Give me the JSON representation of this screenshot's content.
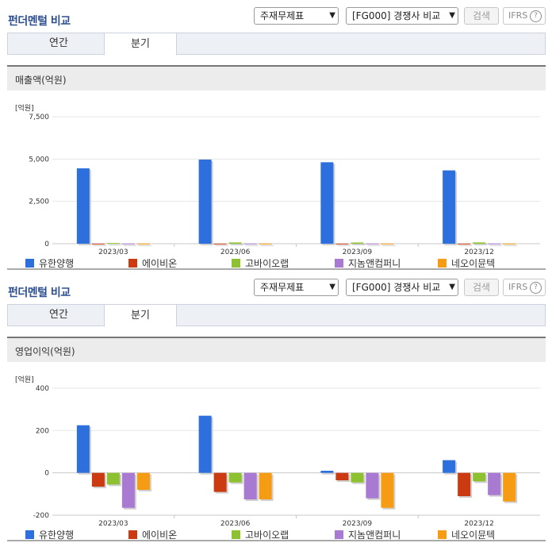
{
  "panels": [
    {
      "title": "펀더멘털 비교",
      "select1": "주재무제표",
      "select2": "[FG000] 경쟁사 비교",
      "search_label": "검색",
      "ifrs_label": "IFRS",
      "ifrs_help": "?",
      "tabs": [
        {
          "label": "연간"
        },
        {
          "label": "분기"
        }
      ],
      "active_tab": "분기",
      "chart_title": "매출액(억원)",
      "unit": "[억원]",
      "legend": [
        "유한양행",
        "에이비온",
        "고바이오랩",
        "지놈앤컴퍼니",
        "네오이뮨텍"
      ]
    },
    {
      "title": "펀더멘털 비교",
      "select1": "주재무제표",
      "select2": "[FG000] 경쟁사 비교",
      "search_label": "검색",
      "ifrs_label": "IFRS",
      "ifrs_help": "?",
      "tabs": [
        {
          "label": "연간"
        },
        {
          "label": "분기"
        }
      ],
      "active_tab": "분기",
      "chart_title": "영업이익(억원)",
      "unit": "[억원]",
      "legend": [
        "유한양행",
        "에이비온",
        "고바이오랩",
        "지놈앤컴퍼니",
        "네오이뮨텍"
      ]
    }
  ],
  "colors": {
    "유한양행": "#2d6fdc",
    "에이비온": "#cc3a12",
    "고바이오랩": "#8ec12f",
    "지놈앤컴퍼니": "#a97ad2",
    "네오이뮨텍": "#f59c14",
    "title_blue": "#2e4f8f"
  },
  "chart_data": [
    {
      "type": "bar",
      "title": "매출액(억원)",
      "unit": "[억원]",
      "categories": [
        "2023/03",
        "2023/06",
        "2023/09",
        "2023/12"
      ],
      "yticks": [
        0,
        2500,
        5000,
        7500
      ],
      "ytick_labels": [
        "0",
        "2,500",
        "5,000",
        "7,500"
      ],
      "ylim": [
        0,
        7500
      ],
      "grid": true,
      "legend_position": "bottom",
      "series": [
        {
          "name": "유한양행",
          "values": [
            4450,
            4970,
            4810,
            4330
          ]
        },
        {
          "name": "에이비온",
          "values": [
            1,
            1,
            1,
            1
          ]
        },
        {
          "name": "고바이오랩",
          "values": [
            40,
            75,
            70,
            75
          ]
        },
        {
          "name": "지놈앤컴퍼니",
          "values": [
            5,
            10,
            10,
            10
          ]
        },
        {
          "name": "네오이뮨텍",
          "values": [
            1,
            1,
            1,
            1
          ]
        }
      ]
    },
    {
      "type": "bar",
      "title": "영업이익(억원)",
      "unit": "[억원]",
      "categories": [
        "2023/03",
        "2023/06",
        "2023/09",
        "2023/12"
      ],
      "yticks": [
        -200,
        0,
        200,
        400
      ],
      "ytick_labels": [
        "-200",
        "0",
        "200",
        "400"
      ],
      "ylim": [
        -200,
        400
      ],
      "grid": true,
      "legend_position": "bottom",
      "series": [
        {
          "name": "유한양행",
          "values": [
            225,
            270,
            10,
            60
          ]
        },
        {
          "name": "에이비온",
          "values": [
            -65,
            -90,
            -35,
            -110
          ]
        },
        {
          "name": "고바이오랩",
          "values": [
            -55,
            -45,
            -45,
            -40
          ]
        },
        {
          "name": "지놈앤컴퍼니",
          "values": [
            -165,
            -125,
            -120,
            -105
          ]
        },
        {
          "name": "네오이뮨텍",
          "values": [
            -80,
            -125,
            -165,
            -135
          ]
        }
      ]
    }
  ]
}
